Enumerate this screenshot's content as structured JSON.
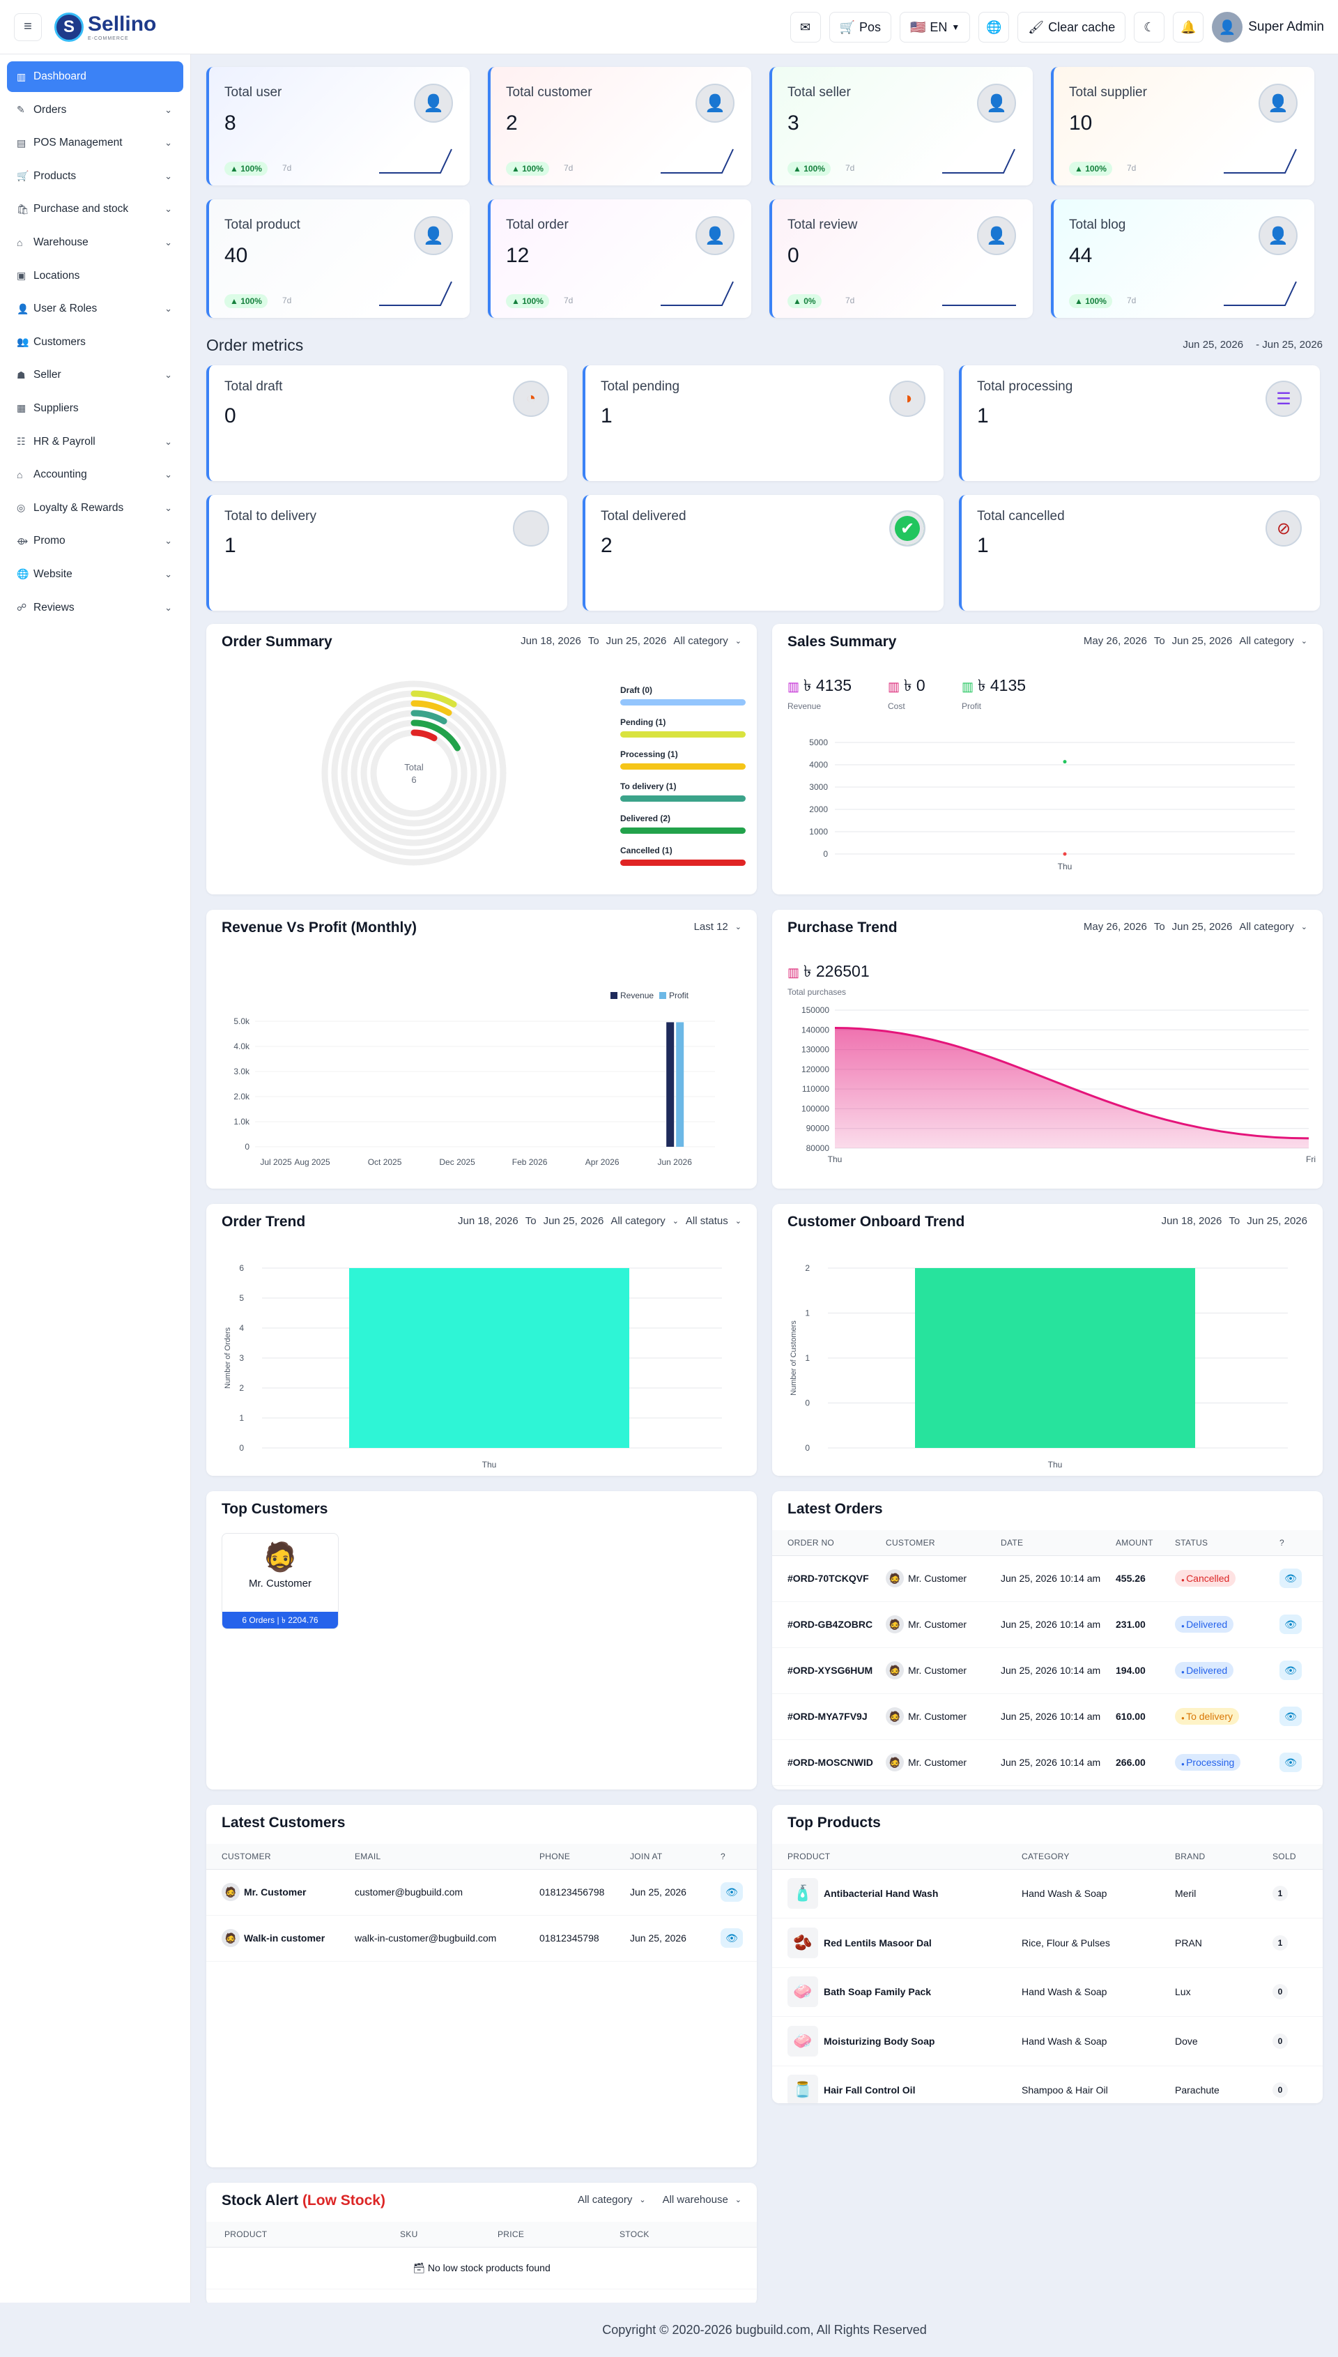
{
  "app": {
    "name": "Sellino",
    "tagline": "E-COMMERCE",
    "copyright": "Copyright © 2020-2026 bugbuild.com, All Rights Reserved"
  },
  "topbar": {
    "pos_label": "Pos",
    "lang_label": "EN",
    "clear_cache_label": "Clear cache",
    "user_name": "Super Admin"
  },
  "sidebar": {
    "items": [
      {
        "label": "Dashboard",
        "icon": "chart-icon",
        "chev": false
      },
      {
        "label": "Orders",
        "icon": "edit-icon",
        "chev": true
      },
      {
        "label": "POS Management",
        "icon": "pos-icon",
        "chev": true
      },
      {
        "label": "Products",
        "icon": "cart-icon",
        "chev": true
      },
      {
        "label": "Purchase and stock",
        "icon": "purchase-icon",
        "chev": true
      },
      {
        "label": "Warehouse",
        "icon": "warehouse-icon",
        "chev": true
      },
      {
        "label": "Locations",
        "icon": "location-icon",
        "chev": false
      },
      {
        "label": "User & Roles",
        "icon": "user-icon",
        "chev": true
      },
      {
        "label": "Customers",
        "icon": "customers-icon",
        "chev": false
      },
      {
        "label": "Seller",
        "icon": "seller-icon",
        "chev": true
      },
      {
        "label": "Suppliers",
        "icon": "suppliers-icon",
        "chev": false
      },
      {
        "label": "HR & Payroll",
        "icon": "hr-icon",
        "chev": true
      },
      {
        "label": "Accounting",
        "icon": "accounting-icon",
        "chev": true
      },
      {
        "label": "Loyalty & Rewards",
        "icon": "loyalty-icon",
        "chev": true
      },
      {
        "label": "Promo",
        "icon": "promo-icon",
        "chev": true
      },
      {
        "label": "Website",
        "icon": "globe-icon",
        "chev": true
      },
      {
        "label": "Reviews",
        "icon": "reviews-icon",
        "chev": true
      }
    ]
  },
  "stats": [
    {
      "label": "Total user",
      "value": "8",
      "badge": "▲ 100%",
      "days": "7d",
      "tint": "#eef2ff"
    },
    {
      "label": "Total customer",
      "value": "2",
      "badge": "▲ 100%",
      "days": "7d",
      "tint": "#fff1f2"
    },
    {
      "label": "Total seller",
      "value": "3",
      "badge": "▲ 100%",
      "days": "7d",
      "tint": "#f0fdf4"
    },
    {
      "label": "Total supplier",
      "value": "10",
      "badge": "▲ 100%",
      "days": "7d",
      "tint": "#fff7ed"
    },
    {
      "label": "Total product",
      "value": "40",
      "badge": "▲ 100%",
      "days": "7d",
      "tint": "#f8fafc"
    },
    {
      "label": "Total order",
      "value": "12",
      "badge": "▲ 100%",
      "days": "7d",
      "tint": "#fdf4ff"
    },
    {
      "label": "Total review",
      "value": "0",
      "badge": "▲ 0%",
      "days": "7d",
      "tint": "#fdf2f8"
    },
    {
      "label": "Total blog",
      "value": "44",
      "badge": "▲ 100%",
      "days": "7d",
      "tint": "#ecfeff"
    }
  ],
  "order_metrics": {
    "title": "Order metrics",
    "date_from": "Jun 25, 2026",
    "date_to": "- Jun 25, 2026",
    "items": [
      {
        "label": "Total draft",
        "value": "0",
        "icon": "draft-icon",
        "glyph": "◔"
      },
      {
        "label": "Total pending",
        "value": "1",
        "icon": "pending-icon",
        "glyph": "◑"
      },
      {
        "label": "Total processing",
        "value": "1",
        "icon": "processing-icon",
        "glyph": "☰"
      },
      {
        "label": "Total to delivery",
        "value": "1",
        "icon": "delivery-icon",
        "glyph": ""
      },
      {
        "label": "Total delivered",
        "value": "2",
        "icon": "delivered-icon",
        "glyph": "✔"
      },
      {
        "label": "Total cancelled",
        "value": "1",
        "icon": "cancelled-icon",
        "glyph": "⊘"
      }
    ]
  },
  "order_summary": {
    "title": "Order Summary",
    "date_from": "Jun 18, 2026",
    "to": "To",
    "date_to": "Jun 25, 2026",
    "category": "All category",
    "center_label": "Total",
    "center_value": "6",
    "chart_data": {
      "type": "radial-bar",
      "total": 6,
      "series": [
        {
          "name": "Draft (0)",
          "value": 0,
          "color": "#93c5fd"
        },
        {
          "name": "Pending (1)",
          "value": 1,
          "color": "#d9e33f"
        },
        {
          "name": "Processing (1)",
          "value": 1,
          "color": "#f5c518"
        },
        {
          "name": "To delivery (1)",
          "value": 1,
          "color": "#3ba38a"
        },
        {
          "name": "Delivered (2)",
          "value": 2,
          "color": "#22a24b"
        },
        {
          "name": "Cancelled (1)",
          "value": 1,
          "color": "#e02424"
        }
      ]
    }
  },
  "sales_summary": {
    "title": "Sales Summary",
    "date_from": "May 26, 2026",
    "to": "To",
    "date_to": "Jun 25, 2026",
    "category": "All category",
    "kpis": [
      {
        "value": "৳ 4135",
        "label": "Revenue",
        "color": "#c026d3"
      },
      {
        "value": "৳ 0",
        "label": "Cost",
        "color": "#db2777"
      },
      {
        "value": "৳ 4135",
        "label": "Profit",
        "color": "#22c55e"
      }
    ],
    "chart_data": {
      "type": "scatter",
      "x": [
        "Thu"
      ],
      "yticks": [
        0,
        1000,
        2000,
        3000,
        4000,
        5000
      ],
      "ylim": [
        0,
        5000
      ],
      "series": [
        {
          "name": "Revenue",
          "values": [
            4135
          ],
          "color": "#22c55e"
        },
        {
          "name": "Cost",
          "values": [
            0
          ],
          "color": "#ef4444"
        }
      ]
    }
  },
  "rev_profit": {
    "title": "Revenue Vs Profit (Monthly)",
    "period": "Last 12",
    "chart_data": {
      "type": "bar",
      "categories": [
        "Jul 2025",
        "Aug 2025",
        "Sep 2025",
        "Oct 2025",
        "Nov 2025",
        "Dec 2025",
        "Jan 2026",
        "Feb 2026",
        "Mar 2026",
        "Apr 2026",
        "May 2026",
        "Jun 2026"
      ],
      "xticks": [
        "Jul 2025",
        "Aug 2025",
        "Oct 2025",
        "Dec 2025",
        "Feb 2026",
        "Apr 2026",
        "Jun 2026"
      ],
      "yticks": [
        "0",
        "1.0k",
        "2.0k",
        "3.0k",
        "4.0k",
        "5.0k"
      ],
      "ylim": [
        0,
        5000
      ],
      "series": [
        {
          "name": "Revenue",
          "color": "#1e2a5a",
          "values": [
            0,
            0,
            0,
            0,
            0,
            0,
            0,
            0,
            0,
            0,
            0,
            4135
          ]
        },
        {
          "name": "Profit",
          "color": "#6cb8e6",
          "values": [
            0,
            0,
            0,
            0,
            0,
            0,
            0,
            0,
            0,
            0,
            0,
            4135
          ]
        }
      ]
    }
  },
  "purchase_trend": {
    "title": "Purchase Trend",
    "date_from": "May 26, 2026",
    "to": "To",
    "date_to": "Jun 25, 2026",
    "category": "All category",
    "total": "৳ 226501",
    "total_label": "Total purchases",
    "chart_data": {
      "type": "area",
      "x": [
        "Thu",
        "Fri"
      ],
      "values": [
        141000,
        85000
      ],
      "ylim": [
        80000,
        150000
      ],
      "yticks": [
        "150000",
        "140000",
        "130000",
        "120000",
        "110000",
        "100000",
        "90000",
        "80000"
      ],
      "color": "#e4147a"
    }
  },
  "order_trend": {
    "title": "Order Trend",
    "date_from": "Jun 18, 2026",
    "to": "To",
    "date_to": "Jun 25, 2026",
    "category": "All category",
    "status": "All status",
    "chart_data": {
      "type": "bar",
      "categories": [
        "Thu"
      ],
      "values": [
        6
      ],
      "ylim": [
        0,
        6
      ],
      "yticks": [
        "0",
        "1",
        "2",
        "3",
        "4",
        "5",
        "6"
      ],
      "ylabel": "Number of Orders",
      "color": "#2ef5d6"
    }
  },
  "customer_trend": {
    "title": "Customer Onboard Trend",
    "date_from": "Jun 18, 2026",
    "to": "To",
    "date_to": "Jun 25, 2026",
    "chart_data": {
      "type": "bar",
      "categories": [
        "Thu"
      ],
      "values": [
        2
      ],
      "ylim": [
        0,
        2
      ],
      "yticks": [
        "0",
        "0",
        "1",
        "1",
        "2"
      ],
      "ylabel": "Number of Customers",
      "color": "#27e39d"
    }
  },
  "top_customers": {
    "title": "Top Customers",
    "items": [
      {
        "name": "Mr. Customer",
        "stats": "6 Orders | ৳ 2204.76"
      }
    ]
  },
  "latest_orders": {
    "title": "Latest Orders",
    "columns": [
      "ORDER NO",
      "CUSTOMER",
      "DATE",
      "AMOUNT",
      "STATUS",
      "?"
    ],
    "rows": [
      {
        "no": "#ORD-70TCKQVF",
        "customer": "Mr. Customer",
        "date": "Jun 25, 2026 10:14 am",
        "amount": "455.26",
        "status": "Cancelled",
        "cls": "st-cancel"
      },
      {
        "no": "#ORD-GB4ZOBRC",
        "customer": "Mr. Customer",
        "date": "Jun 25, 2026 10:14 am",
        "amount": "231.00",
        "status": "Delivered",
        "cls": "st-deliv"
      },
      {
        "no": "#ORD-XYSG6HUM",
        "customer": "Mr. Customer",
        "date": "Jun 25, 2026 10:14 am",
        "amount": "194.00",
        "status": "Delivered",
        "cls": "st-deliv"
      },
      {
        "no": "#ORD-MYA7FV9J",
        "customer": "Mr. Customer",
        "date": "Jun 25, 2026 10:14 am",
        "amount": "610.00",
        "status": "To delivery",
        "cls": "st-todel"
      },
      {
        "no": "#ORD-MOSCNWID",
        "customer": "Mr. Customer",
        "date": "Jun 25, 2026 10:14 am",
        "amount": "266.00",
        "status": "Processing",
        "cls": "st-proc"
      }
    ]
  },
  "latest_customers": {
    "title": "Latest Customers",
    "columns": [
      "CUSTOMER",
      "EMAIL",
      "PHONE",
      "JOIN AT",
      "?"
    ],
    "rows": [
      {
        "name": "Mr. Customer",
        "email": "customer@bugbuild.com",
        "phone": "018123456798",
        "join": "Jun 25, 2026"
      },
      {
        "name": "Walk-in customer",
        "email": "walk-in-customer@bugbuild.com",
        "phone": "01812345798",
        "join": "Jun 25, 2026"
      }
    ]
  },
  "top_products": {
    "title": "Top Products",
    "columns": [
      "PRODUCT",
      "CATEGORY",
      "BRAND",
      "SOLD"
    ],
    "rows": [
      {
        "name": "Antibacterial Hand Wash",
        "category": "Hand Wash & Soap",
        "brand": "Meril",
        "sold": "1",
        "glyph": "🧴"
      },
      {
        "name": "Red Lentils Masoor Dal",
        "category": "Rice, Flour & Pulses",
        "brand": "PRAN",
        "sold": "1",
        "glyph": "🫘"
      },
      {
        "name": "Bath Soap Family Pack",
        "category": "Hand Wash & Soap",
        "brand": "Lux",
        "sold": "0",
        "glyph": "🧼"
      },
      {
        "name": "Moisturizing Body Soap",
        "category": "Hand Wash & Soap",
        "brand": "Dove",
        "sold": "0",
        "glyph": "🧼"
      },
      {
        "name": "Hair Fall Control Oil",
        "category": "Shampoo & Hair Oil",
        "brand": "Parachute",
        "sold": "0",
        "glyph": "🫙"
      }
    ]
  },
  "stock_alert": {
    "title": "Stock Alert",
    "title_accent": "(Low Stock)",
    "category": "All category",
    "warehouse": "All warehouse",
    "columns": [
      "PRODUCT",
      "SKU",
      "PRICE",
      "STOCK"
    ],
    "empty": "No low stock products found"
  }
}
